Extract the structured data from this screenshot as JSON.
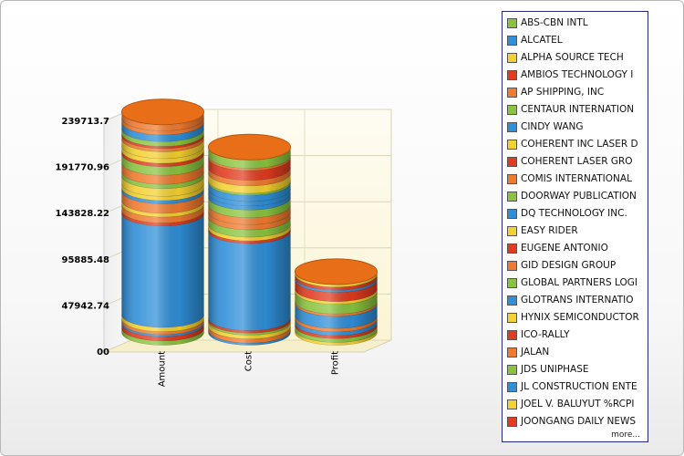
{
  "chart_data": {
    "type": "bar",
    "style": "3d-stacked-cylinder",
    "categories": [
      "Amount",
      "Cost",
      "Profit"
    ],
    "totals": [
      231000,
      194500,
      65000
    ],
    "y_ticks": [
      "00",
      "47942.74",
      "95885.48",
      "143828.22",
      "191770.96",
      "239713.7"
    ],
    "ylim": [
      0,
      239713.7
    ],
    "grid": true,
    "legend_position": "right",
    "series": [
      {
        "name": "ABS-CBN INTL",
        "color": "#8ac43f"
      },
      {
        "name": "ALCATEL",
        "color": "#2f8fd8"
      },
      {
        "name": "ALPHA SOURCE TECH",
        "color": "#f4d12f"
      },
      {
        "name": "AMBIOS TECHNOLOGY I",
        "color": "#e23b1f"
      },
      {
        "name": "AP SHIPPING, INC",
        "color": "#f07a2e"
      },
      {
        "name": "CENTAUR INTERNATION",
        "color": "#8ac43f"
      },
      {
        "name": "CINDY WANG",
        "color": "#2f8fd8"
      },
      {
        "name": "COHERENT INC LASER D",
        "color": "#f4d12f"
      },
      {
        "name": "COHERENT LASER GRO",
        "color": "#e23b1f"
      },
      {
        "name": "COMIS INTERNATIONAL",
        "color": "#f07a2e"
      },
      {
        "name": "DOORWAY PUBLICATION",
        "color": "#8ac43f"
      },
      {
        "name": "DQ TECHNOLOGY INC.",
        "color": "#2f8fd8"
      },
      {
        "name": "EASY RIDER",
        "color": "#f4d12f"
      },
      {
        "name": "EUGENE ANTONIO",
        "color": "#e23b1f"
      },
      {
        "name": "GID DESIGN GROUP",
        "color": "#f07a2e"
      },
      {
        "name": "GLOBAL PARTNERS LOGI",
        "color": "#8ac43f"
      },
      {
        "name": "GLOTRANS INTERNATIO",
        "color": "#2f8fd8"
      },
      {
        "name": "HYNIX SEMICONDUCTOR",
        "color": "#f4d12f"
      },
      {
        "name": "ICO-RALLY",
        "color": "#e23b1f"
      },
      {
        "name": "JALAN",
        "color": "#f07a2e"
      },
      {
        "name": "JDS UNIPHASE",
        "color": "#8ac43f"
      },
      {
        "name": "JL CONSTRUCTION ENTE",
        "color": "#2f8fd8"
      },
      {
        "name": "JOEL V. BALUYUT %RCPI",
        "color": "#f4d12f"
      },
      {
        "name": "JOONGANG DAILY NEWS",
        "color": "#e23b1f"
      }
    ]
  },
  "legend": {
    "more_label": "more..."
  }
}
